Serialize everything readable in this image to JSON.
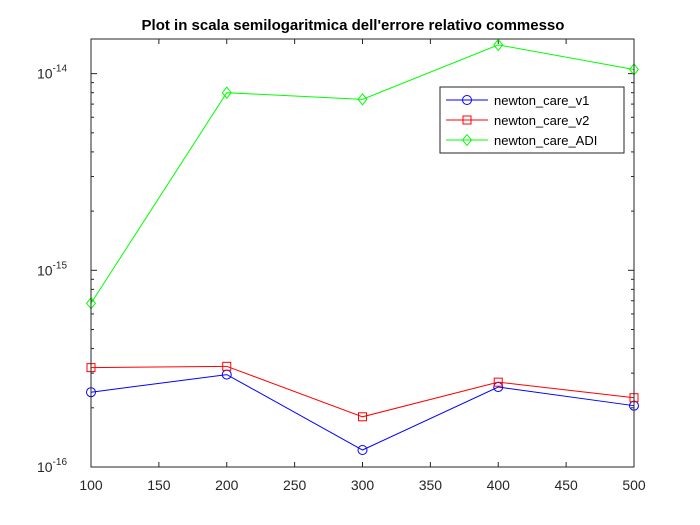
{
  "chart_data": {
    "type": "line",
    "title": "Plot in scala semilogaritmica dell'errore relativo commesso",
    "xlabel": "",
    "ylabel": "",
    "x": [
      100,
      200,
      300,
      400,
      500
    ],
    "xlim": [
      100,
      500
    ],
    "xticks": [
      "100",
      "150",
      "200",
      "250",
      "300",
      "350",
      "400",
      "450",
      "500"
    ],
    "yscale": "log",
    "ylim": [
      1e-16,
      1.5e-14
    ],
    "yticks": [
      {
        "base": "10",
        "exp": "-16"
      },
      {
        "base": "10",
        "exp": "-15"
      },
      {
        "base": "10",
        "exp": "-14"
      }
    ],
    "grid": false,
    "legend_position": "top-right",
    "series": [
      {
        "name": "newton_care_v1",
        "color": "#0000ff",
        "marker": "circle",
        "values": [
          2.4e-16,
          2.95e-16,
          1.22e-16,
          2.55e-16,
          2.05e-16
        ]
      },
      {
        "name": "newton_care_v2",
        "color": "#ff0000",
        "marker": "square",
        "values": [
          3.2e-16,
          3.25e-16,
          1.8e-16,
          2.7e-16,
          2.25e-16
        ]
      },
      {
        "name": "newton_care_ADI",
        "color": "#00ff00",
        "marker": "diamond",
        "values": [
          6.8e-16,
          8e-15,
          7.4e-15,
          1.4e-14,
          1.05e-14
        ]
      }
    ]
  }
}
